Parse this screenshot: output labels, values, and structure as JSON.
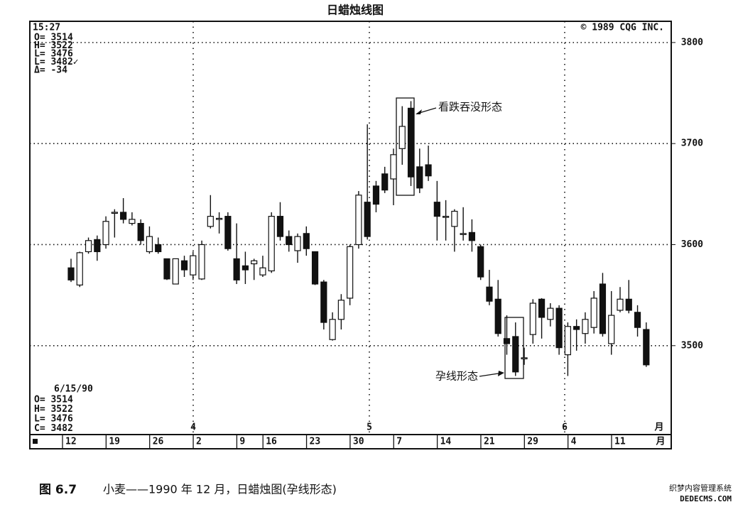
{
  "title": "日蜡烛线图",
  "header": {
    "time": "15:27",
    "copyright": "© 1989 CQG INC."
  },
  "info_top": [
    "O= 3514",
    "H= 3522",
    "L= 3476",
    "L= 3482✓",
    "Δ=  -34"
  ],
  "info_bottom": {
    "date": "6/15/90",
    "lines": [
      "O= 3514",
      "H= 3522",
      "L= 3476",
      "C= 3482"
    ]
  },
  "chart_data": {
    "type": "candlestick",
    "categories": [
      "12",
      null,
      null,
      null,
      null,
      "19",
      null,
      null,
      null,
      null,
      "26",
      null,
      null,
      null,
      null,
      "2",
      null,
      null,
      null,
      null,
      "9",
      null,
      null,
      "16",
      null,
      null,
      null,
      null,
      "23",
      null,
      null,
      null,
      null,
      "30",
      null,
      null,
      null,
      null,
      "7",
      null,
      null,
      null,
      null,
      "14",
      null,
      null,
      null,
      null,
      "21",
      null,
      null,
      null,
      null,
      "29",
      null,
      null,
      null,
      null,
      "4",
      null,
      null,
      null,
      null,
      "11",
      null,
      null,
      null
    ],
    "open": [
      3577,
      3560,
      3593,
      3605,
      3600,
      3631,
      3632,
      3621,
      3621,
      3593,
      3600,
      3586,
      3561,
      3584,
      3570,
      3566,
      3618,
      3626,
      3628,
      3586,
      3579,
      3581,
      3570,
      3574,
      3628,
      3608,
      3594,
      3611,
      3593,
      3563,
      3506,
      3526,
      3547,
      3600,
      3642,
      3658,
      3670,
      3665,
      3695,
      3735,
      3677,
      3679,
      3642,
      3628,
      3618,
      3611,
      3612,
      3598,
      3558,
      3546,
      3507,
      3509,
      3488,
      3511,
      3546,
      3526,
      3537,
      3491,
      3519,
      3512,
      3518,
      3561,
      3502,
      3535,
      3546,
      3533,
      3516
    ],
    "high": [
      3586,
      3593,
      3607,
      3609,
      3628,
      3635,
      3646,
      3632,
      3625,
      3618,
      3607,
      3586,
      3586,
      3589,
      3593,
      3604,
      3649,
      3632,
      3632,
      3621,
      3593,
      3586,
      3589,
      3632,
      3642,
      3614,
      3611,
      3618,
      3593,
      3565,
      3533,
      3551,
      3600,
      3653,
      3719,
      3663,
      3677,
      3695,
      3737,
      3742,
      3695,
      3698,
      3663,
      3644,
      3635,
      3637,
      3625,
      3600,
      3575,
      3565,
      3530,
      3523,
      3498,
      3546,
      3547,
      3542,
      3540,
      3523,
      3526,
      3533,
      3554,
      3572,
      3554,
      3558,
      3565,
      3540,
      3523
    ],
    "low": [
      3563,
      3558,
      3591,
      3584,
      3596,
      3607,
      3621,
      3619,
      3600,
      3591,
      3591,
      3565,
      3561,
      3568,
      3565,
      3565,
      3616,
      3611,
      3594,
      3561,
      3561,
      3565,
      3568,
      3572,
      3604,
      3593,
      3582,
      3589,
      3560,
      3516,
      3505,
      3516,
      3540,
      3596,
      3605,
      3632,
      3651,
      3639,
      3679,
      3658,
      3651,
      3663,
      3604,
      3604,
      3593,
      3604,
      3593,
      3565,
      3540,
      3509,
      3491,
      3470,
      3481,
      3502,
      3507,
      3519,
      3491,
      3470,
      3495,
      3502,
      3512,
      3509,
      3491,
      3533,
      3532,
      3509,
      3479
    ],
    "close": [
      3565,
      3592,
      3604,
      3593,
      3623,
      3632,
      3625,
      3625,
      3604,
      3608,
      3593,
      3566,
      3586,
      3575,
      3589,
      3600,
      3628,
      3626,
      3596,
      3565,
      3575,
      3584,
      3577,
      3628,
      3608,
      3600,
      3608,
      3596,
      3561,
      3523,
      3526,
      3545,
      3598,
      3649,
      3608,
      3640,
      3654,
      3689,
      3717,
      3667,
      3656,
      3668,
      3628,
      3628,
      3633,
      3611,
      3604,
      3568,
      3544,
      3512,
      3502,
      3474,
      3488,
      3542,
      3528,
      3537,
      3498,
      3519,
      3516,
      3526,
      3547,
      3512,
      3530,
      3546,
      3535,
      3518,
      3481
    ],
    "up_color": "#ffffff",
    "down_color": "#111111",
    "ylim": [
      3412,
      3821
    ],
    "yticks": [
      3500,
      3600,
      3700,
      3800
    ],
    "grid": true,
    "month_labels": [
      "4",
      "5",
      "6",
      "月"
    ],
    "axis_end_label": "月",
    "annotations": [
      "看跌吞没形态",
      "孕线形态"
    ]
  },
  "caption": {
    "figure": "图 6.7",
    "text": "小麦——1990 年 12 月，日蜡烛图(孕线形态)"
  },
  "watermark": [
    "织梦内容管理系统",
    "DEDECMS.COM"
  ]
}
